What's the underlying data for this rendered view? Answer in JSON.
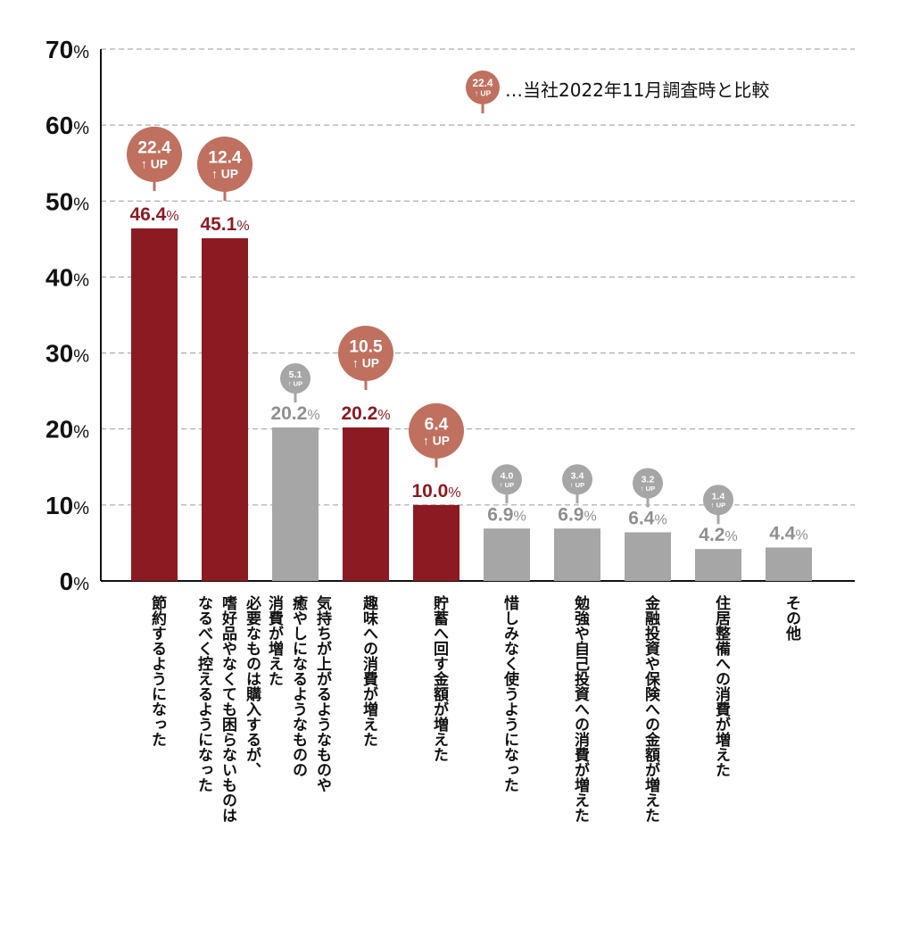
{
  "chart_data": {
    "type": "bar",
    "ylim": [
      0,
      70
    ],
    "yticks": [
      "0",
      "10",
      "20",
      "30",
      "40",
      "50",
      "60",
      "70"
    ],
    "ytick_suffix": "%",
    "grid": true,
    "highlight_color": "#8b1a22",
    "base_color": "#a6a6a6",
    "badge_highlight_color": "#c0705f",
    "badge_base_color": "#a6a6a6",
    "up_label": "UP",
    "up_arrow": "↑",
    "legend": {
      "badge_value": "22.4",
      "text": "…当社2022年11月調査時と比較",
      "position": "top-right"
    },
    "categories": [
      [
        "節約するようになった"
      ],
      [
        "必要なものは購入するが、",
        "嗜好品やなくても困らないものは",
        "なるべく控えるようになった"
      ],
      [
        "気持ちが上がるようなものや",
        "癒やしになるようなものの",
        "消費が増えた"
      ],
      [
        "趣味への消費が増えた"
      ],
      [
        "貯蓄へ回す金額が増えた"
      ],
      [
        "惜しみなく使うようになった"
      ],
      [
        "勉強や自己投資への消費が増えた"
      ],
      [
        "金融投資や保険への金額が増えた"
      ],
      [
        "住居整備への消費が増えた"
      ],
      [
        "その他"
      ]
    ],
    "values": [
      46.4,
      45.1,
      20.2,
      20.2,
      10.0,
      6.9,
      6.9,
      6.4,
      4.2,
      4.4
    ],
    "value_labels": [
      "46.4",
      "45.1",
      "20.2",
      "20.2",
      "10.0",
      "6.9",
      "6.9",
      "6.4",
      "4.2",
      "4.4"
    ],
    "highlighted": [
      true,
      true,
      false,
      true,
      true,
      false,
      false,
      false,
      false,
      false
    ],
    "increase": [
      "22.4",
      "12.4",
      "5.1",
      "10.5",
      "6.4",
      "4.0",
      "3.4",
      "3.2",
      "1.4",
      null
    ]
  }
}
